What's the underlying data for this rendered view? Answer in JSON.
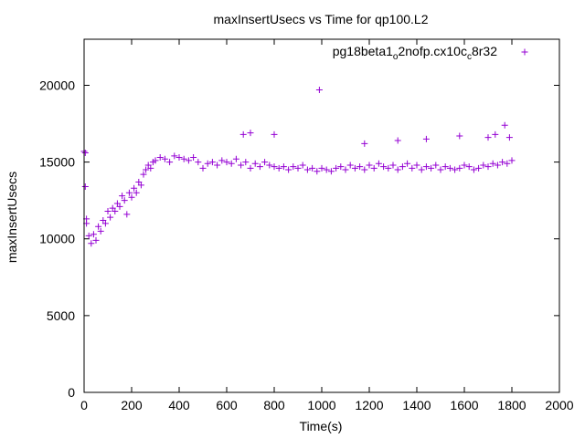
{
  "chart_data": {
    "type": "scatter",
    "title": "maxInsertUsecs vs Time for qp100.L2",
    "xlabel": "Time(s)",
    "ylabel": "maxInsertUsecs",
    "xlim": [
      0,
      2000
    ],
    "ylim": [
      0,
      23000
    ],
    "x_ticks": [
      0,
      200,
      400,
      600,
      800,
      1000,
      1200,
      1400,
      1600,
      1800,
      2000
    ],
    "y_ticks": [
      0,
      5000,
      10000,
      15000,
      20000
    ],
    "grid": false,
    "legend_position": "top-right",
    "marker": "plus",
    "series": [
      {
        "name": "pg18beta1_o2nofp.cx10c_c8r32",
        "name_parts": [
          {
            "text": "pg18beta1",
            "sub": false
          },
          {
            "text": "o",
            "sub": true
          },
          {
            "text": "2nofp.cx10c",
            "sub": false
          },
          {
            "text": "c",
            "sub": true
          },
          {
            "text": "8r32",
            "sub": false
          }
        ],
        "color": "#9400d3",
        "x": [
          0,
          5,
          10,
          20,
          30,
          40,
          50,
          60,
          70,
          80,
          90,
          100,
          110,
          120,
          130,
          140,
          150,
          160,
          170,
          180,
          190,
          200,
          210,
          220,
          230,
          240,
          250,
          260,
          270,
          280,
          290,
          300,
          320,
          340,
          360,
          380,
          400,
          420,
          440,
          460,
          480,
          500,
          520,
          540,
          560,
          580,
          600,
          620,
          640,
          660,
          680,
          700,
          720,
          740,
          760,
          780,
          800,
          820,
          840,
          860,
          880,
          900,
          920,
          940,
          960,
          980,
          1000,
          1020,
          1040,
          1060,
          1080,
          1100,
          1120,
          1140,
          1160,
          1180,
          1200,
          1220,
          1240,
          1260,
          1280,
          1300,
          1320,
          1340,
          1360,
          1380,
          1400,
          1420,
          1440,
          1460,
          1480,
          1500,
          1520,
          1540,
          1560,
          1580,
          1600,
          1620,
          1640,
          1660,
          1680,
          1700,
          1720,
          1740,
          1760,
          1780,
          1800,
          5,
          10,
          670,
          700,
          800,
          990,
          1180,
          1320,
          1440,
          1580,
          1700,
          1730,
          1770,
          1790
        ],
        "y": [
          15700,
          13400,
          11000,
          10200,
          9700,
          10300,
          9900,
          10800,
          10500,
          11200,
          11000,
          11800,
          11400,
          12000,
          11800,
          12300,
          12100,
          12800,
          12500,
          11600,
          13000,
          12700,
          13300,
          13000,
          13700,
          13500,
          14200,
          14500,
          14800,
          14600,
          15000,
          15100,
          15300,
          15200,
          15000,
          15400,
          15300,
          15200,
          15100,
          15300,
          15000,
          14600,
          14900,
          15000,
          14800,
          15100,
          15000,
          14900,
          15200,
          14800,
          15000,
          14600,
          14900,
          14700,
          15000,
          14800,
          14700,
          14600,
          14700,
          14500,
          14700,
          14600,
          14800,
          14500,
          14600,
          14400,
          14600,
          14500,
          14400,
          14600,
          14700,
          14500,
          14800,
          14600,
          14700,
          14500,
          14800,
          14600,
          14900,
          14700,
          14600,
          14800,
          14500,
          14700,
          14900,
          14600,
          14800,
          14500,
          14700,
          14600,
          14800,
          14500,
          14700,
          14600,
          14500,
          14600,
          14800,
          14700,
          14500,
          14600,
          14800,
          14700,
          14900,
          14800,
          15000,
          14900,
          15100,
          15600,
          11300,
          16800,
          16900,
          16800,
          19700,
          16200,
          16400,
          16500,
          16700,
          16600,
          16800,
          17400,
          16600
        ]
      }
    ]
  }
}
